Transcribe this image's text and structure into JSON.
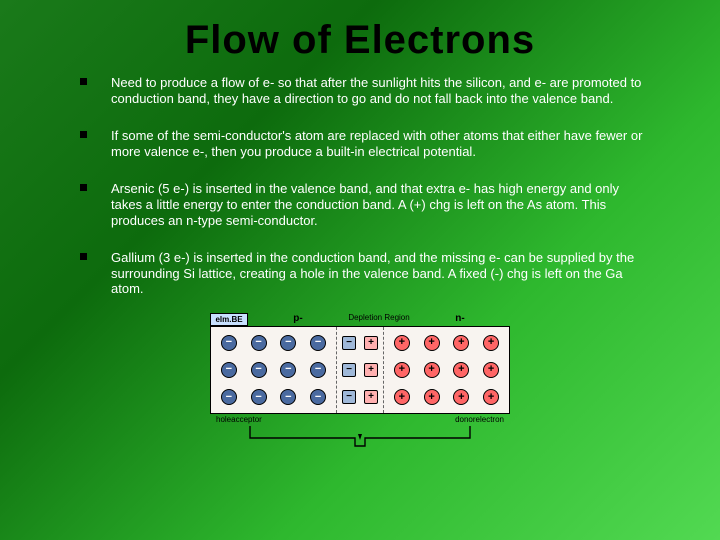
{
  "title": "Flow of Electrons",
  "bullets": [
    "Need to produce a flow of e- so that after the sunlight hits the silicon, and e- are promoted to conduction band, they have a direction to go and do not fall back into the valence band.",
    "If some of the semi-conductor's atom are replaced with other atoms that either have fewer or more valence e-, then you produce a built-in electrical potential.",
    "Arsenic (5 e-) is inserted in the valence band, and that extra e- has high energy and only takes a little energy to enter the conduction band.  A (+) chg is left on the As atom.  This produces an n-type semi-conductor.",
    "Gallium (3 e-) is inserted in the conduction band, and the missing e- can be supplied by the surrounding Si lattice, creating a hole in the valence band.   A fixed (-) chg is left on the Ga atom."
  ],
  "diagram": {
    "label_box": "elm.BE",
    "p_label": "p-",
    "dep_label": "Depletion Region",
    "n_label": "n-",
    "hole_label": "hole",
    "acceptor_label": "acceptor",
    "donor_label": "donor",
    "electron_label": "electron",
    "colors": {
      "negative": "#4a6aa0",
      "positive": "#ff6666",
      "neg_ion": "#9fb8d8",
      "pos_ion": "#ffb0b0",
      "bg": "#f8f4f0"
    },
    "p_grid": [
      "neg",
      "neg",
      "neg",
      "neg",
      "neg",
      "neg",
      "neg",
      "neg",
      "neg",
      "neg",
      "neg",
      "neg"
    ],
    "n_grid": [
      "pos",
      "pos",
      "pos",
      "pos",
      "pos",
      "pos",
      "pos",
      "pos",
      "pos",
      "pos",
      "pos",
      "pos"
    ],
    "dep_left": [
      "neg_ion",
      "neg_ion",
      "neg_ion"
    ],
    "dep_right": [
      "pos_ion",
      "pos_ion",
      "pos_ion"
    ]
  }
}
